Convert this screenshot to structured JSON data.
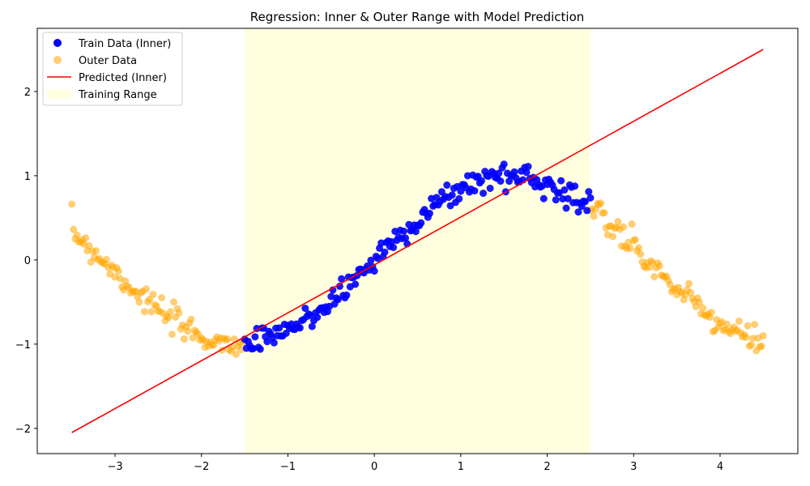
{
  "chart_data": {
    "type": "scatter",
    "title": "Regression: Inner & Outer Range with Model Prediction",
    "xlabel": "",
    "ylabel": "",
    "xlim": [
      -3.9,
      4.9
    ],
    "ylim": [
      -2.3,
      2.75
    ],
    "x_ticks": [
      -3,
      -2,
      -1,
      0,
      1,
      2,
      3,
      4
    ],
    "x_tick_labels": [
      "−3",
      "−2",
      "−1",
      "0",
      "1",
      "2",
      "3",
      "4"
    ],
    "y_ticks": [
      -2,
      -1,
      0,
      1,
      2
    ],
    "y_tick_labels": [
      "−2",
      "−1",
      "0",
      "1",
      "2"
    ],
    "grid": false,
    "legend_placement": "upper-left",
    "training_range": {
      "label": "Training Range",
      "x_start": -1.5,
      "x_end": 2.5,
      "color": "#ffffe0"
    },
    "series": [
      {
        "name": "Train Data (Inner)",
        "kind": "scatter",
        "color": "#0000ff",
        "opacity": 0.9,
        "x_range": [
          -1.5,
          2.5
        ],
        "step": 0.02,
        "curve": "sin",
        "noise": 0.08,
        "count": 200
      },
      {
        "name": "Outer Data",
        "kind": "scatter",
        "color": "#ffa500",
        "opacity": 0.55,
        "x_ranges": [
          [
            -3.5,
            -1.5
          ],
          [
            2.5,
            4.5
          ]
        ],
        "step": 0.02,
        "curve": "sin",
        "noise": 0.08,
        "count": 200
      },
      {
        "name": "Predicted (Inner)",
        "kind": "line",
        "color": "#ff0000",
        "slope": 0.57,
        "intercept": -0.05,
        "x_range": [
          -3.5,
          4.5
        ],
        "y_range": [
          -2.05,
          2.5
        ]
      }
    ]
  }
}
